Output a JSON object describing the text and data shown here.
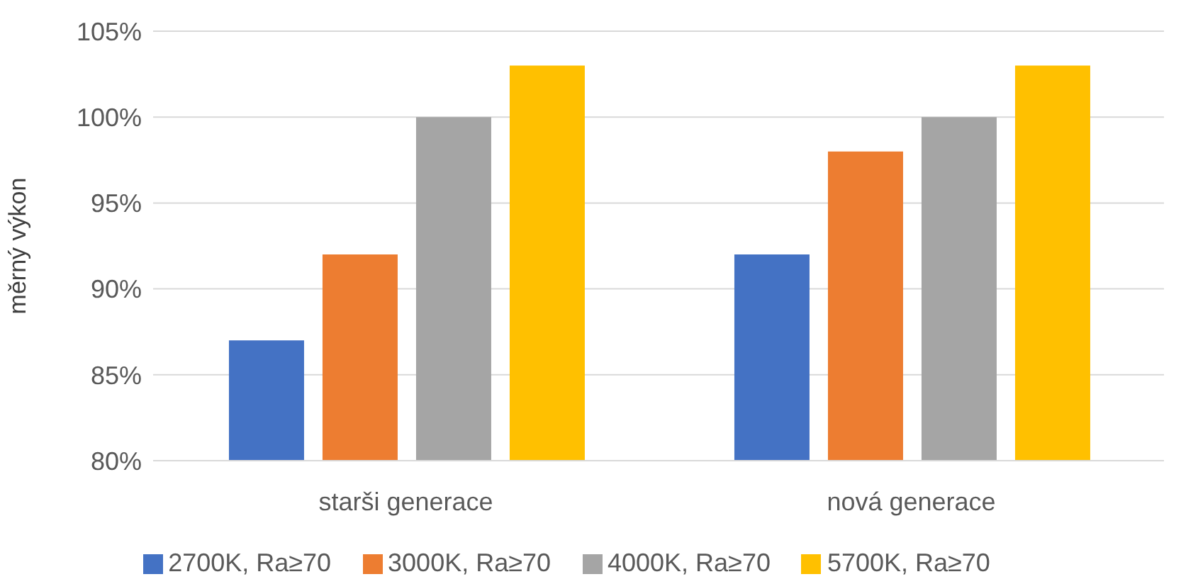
{
  "chart_data": {
    "type": "bar",
    "ylabel": "měrný výkon",
    "categories": [
      "starši generace",
      "nová generace"
    ],
    "series": [
      {
        "name": "2700K, Ra≥70",
        "color": "#4472c4",
        "values": [
          87,
          92
        ]
      },
      {
        "name": "3000K, Ra≥70",
        "color": "#ed7d31",
        "values": [
          92,
          98
        ]
      },
      {
        "name": "4000K, Ra≥70",
        "color": "#a5a5a5",
        "values": [
          100,
          100
        ]
      },
      {
        "name": "5700K, Ra≥70",
        "color": "#ffc000",
        "values": [
          103,
          103
        ]
      }
    ],
    "ylim": [
      80,
      105
    ],
    "yticks": [
      {
        "value": 80,
        "label": "80%"
      },
      {
        "value": 85,
        "label": "85%"
      },
      {
        "value": 90,
        "label": "90%"
      },
      {
        "value": 95,
        "label": "95%"
      },
      {
        "value": 100,
        "label": "100%"
      },
      {
        "value": 105,
        "label": "105%"
      }
    ],
    "grid": "y",
    "legend": "bottom"
  }
}
